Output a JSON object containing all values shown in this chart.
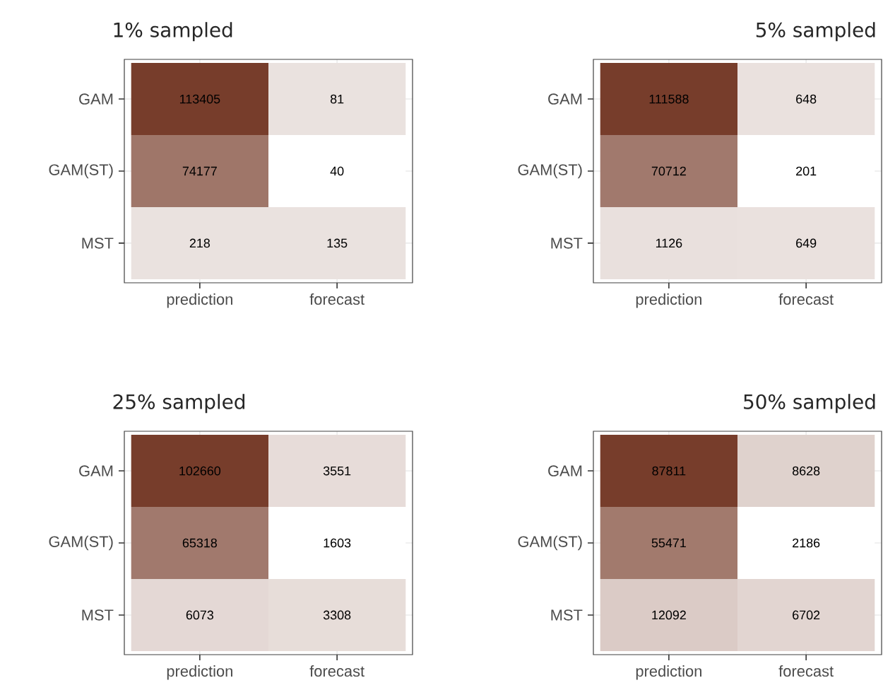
{
  "chart_data": [
    {
      "type": "heatmap",
      "title": "1% sampled",
      "categories": [
        "prediction",
        "forecast"
      ],
      "y_categories": [
        "GAM",
        "GAM(ST)",
        "MST"
      ],
      "cells": [
        [
          113405,
          81
        ],
        [
          74177,
          40
        ],
        [
          218,
          135
        ]
      ],
      "data_labels": true,
      "grid": true
    },
    {
      "type": "heatmap",
      "title": "5% sampled",
      "categories": [
        "prediction",
        "forecast"
      ],
      "y_categories": [
        "GAM",
        "GAM(ST)",
        "MST"
      ],
      "cells": [
        [
          111588,
          648
        ],
        [
          70712,
          201
        ],
        [
          1126,
          649
        ]
      ],
      "data_labels": true,
      "grid": true
    },
    {
      "type": "heatmap",
      "title": "25% sampled",
      "categories": [
        "prediction",
        "forecast"
      ],
      "y_categories": [
        "GAM",
        "GAM(ST)",
        "MST"
      ],
      "cells": [
        [
          102660,
          3551
        ],
        [
          65318,
          1603
        ],
        [
          6073,
          3308
        ]
      ],
      "data_labels": true,
      "grid": true
    },
    {
      "type": "heatmap",
      "title": "50% sampled",
      "categories": [
        "prediction",
        "forecast"
      ],
      "y_categories": [
        "GAM",
        "GAM(ST)",
        "MST"
      ],
      "cells": [
        [
          87811,
          8628
        ],
        [
          55471,
          2186
        ],
        [
          12092,
          6702
        ]
      ],
      "data_labels": true,
      "grid": true
    }
  ]
}
